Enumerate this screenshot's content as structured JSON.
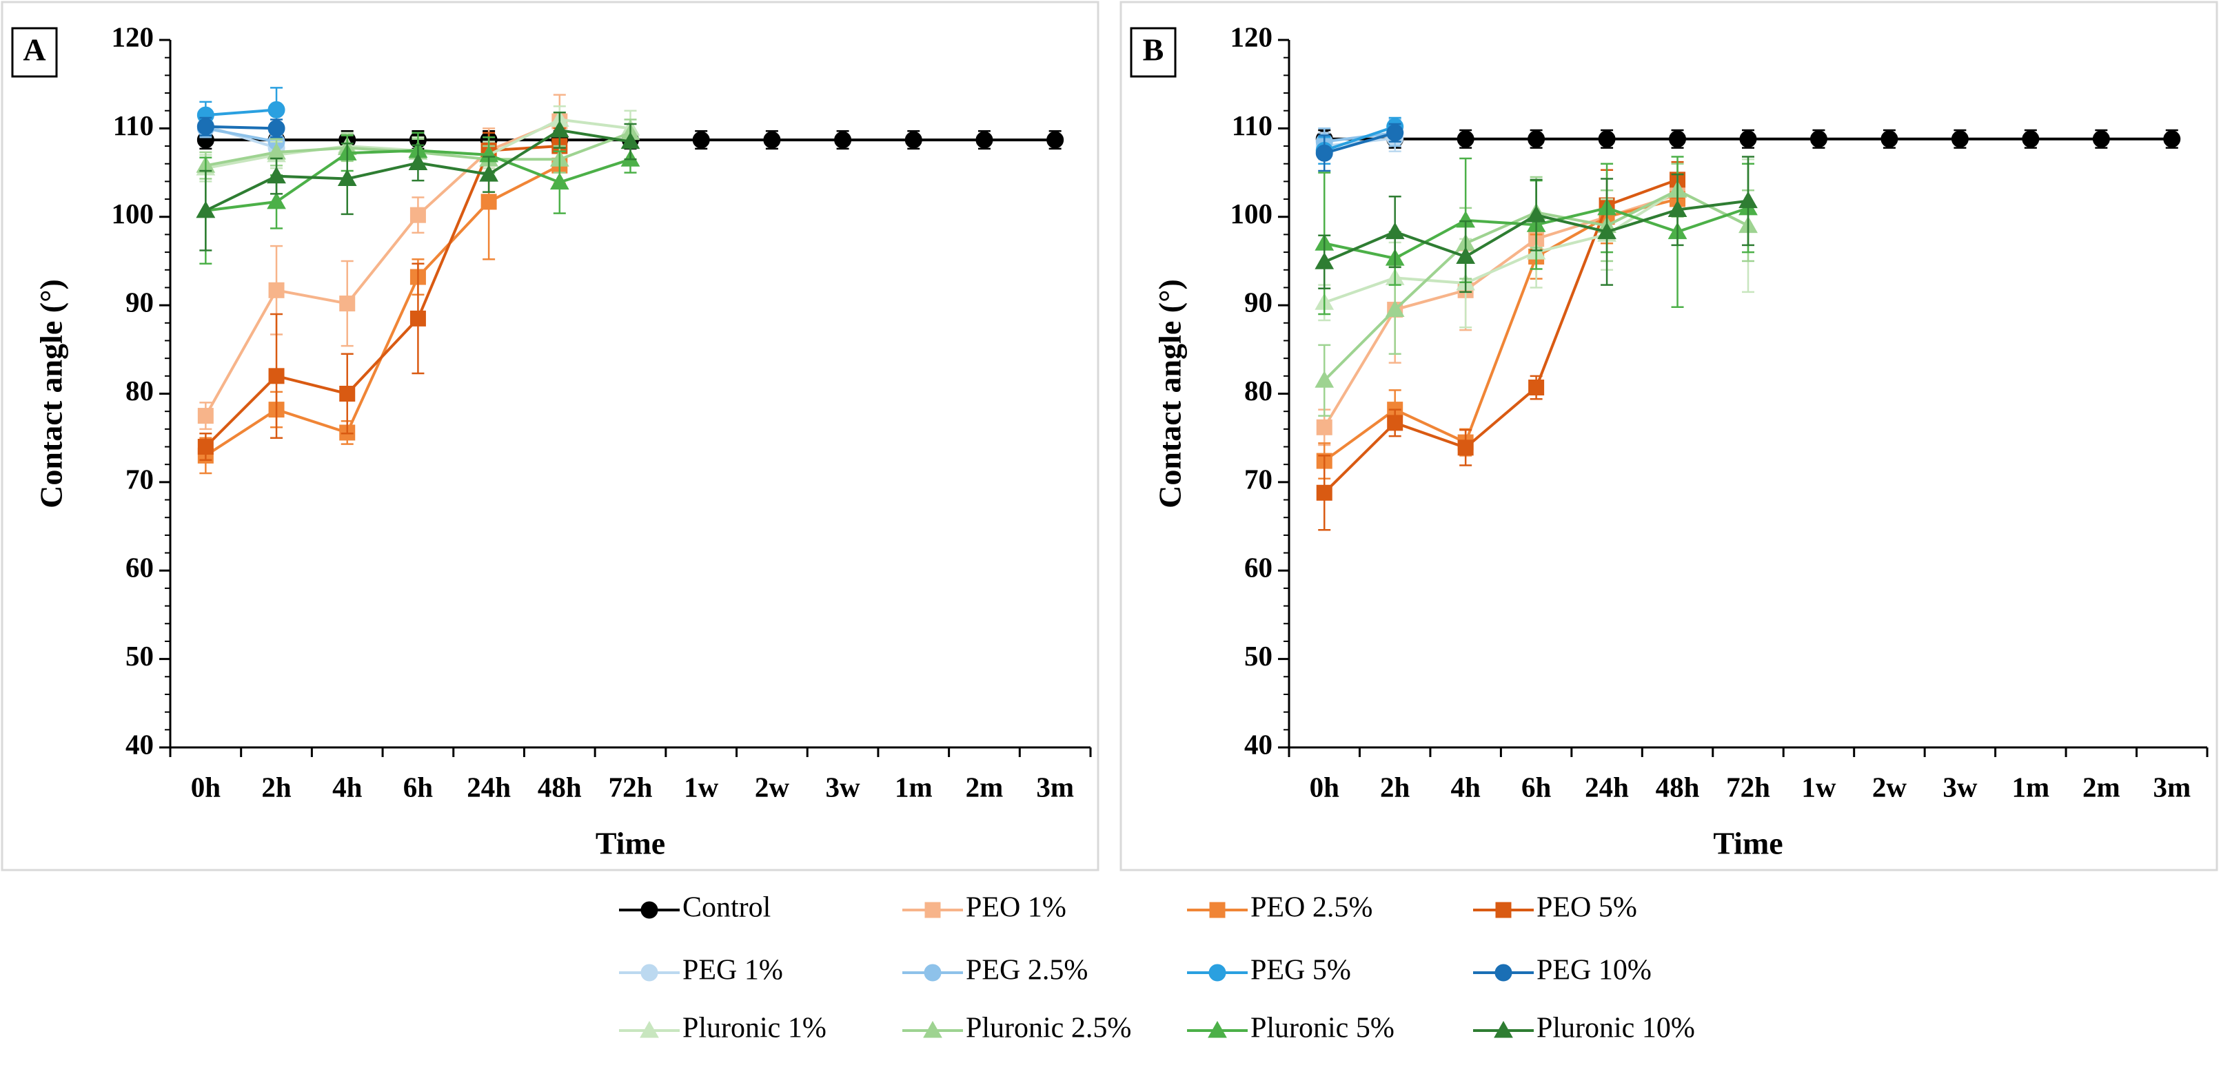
{
  "chart_data": [
    {
      "type": "line",
      "panel": "A",
      "ylabel": "Contact angle (°)",
      "xlabel": "Time",
      "categories": [
        "0h",
        "2h",
        "4h",
        "6h",
        "24h",
        "48h",
        "72h",
        "1w",
        "2w",
        "3w",
        "1m",
        "2m",
        "3m"
      ],
      "ylim": [
        40,
        120
      ],
      "yticks": [
        40,
        50,
        60,
        70,
        80,
        90,
        100,
        110,
        120
      ],
      "series": [
        {
          "values": [
            108.7,
            108.7,
            108.7,
            108.7,
            108.7,
            108.7,
            108.7,
            108.7,
            108.7,
            108.7,
            108.7,
            108.7,
            108.7
          ],
          "errors": [
            1,
            1,
            1,
            1,
            1,
            1,
            1,
            1,
            1,
            1,
            1,
            1,
            1
          ]
        },
        {
          "values": [
            77.5,
            91.7,
            90.2,
            100.2,
            107.5,
            110.8,
            null,
            null,
            null,
            null,
            null,
            null,
            null
          ],
          "errors": [
            1.5,
            5,
            4.8,
            2,
            2.5,
            3,
            null,
            null,
            null,
            null,
            null,
            null,
            null
          ]
        },
        {
          "values": [
            73,
            78.2,
            75.6,
            93.2,
            101.7,
            105.8,
            null,
            null,
            null,
            null,
            null,
            null,
            null
          ],
          "errors": [
            2,
            2,
            1.3,
            2,
            6.5,
            2,
            null,
            null,
            null,
            null,
            null,
            null,
            null
          ]
        },
        {
          "values": [
            74,
            82,
            80,
            88.5,
            107.5,
            108,
            null,
            null,
            null,
            null,
            null,
            null,
            null
          ],
          "errors": [
            1.5,
            7,
            4.5,
            6.2,
            2,
            2,
            null,
            null,
            null,
            null,
            null,
            null,
            null
          ]
        },
        {
          "values": [
            110.3,
            107.8,
            null,
            null,
            null,
            null,
            null,
            null,
            null,
            null,
            null,
            null,
            null
          ],
          "errors": [
            1,
            1.5,
            null,
            null,
            null,
            null,
            null,
            null,
            null,
            null,
            null,
            null,
            null
          ]
        },
        {
          "values": [
            110,
            108.5,
            null,
            null,
            null,
            null,
            null,
            null,
            null,
            null,
            null,
            null,
            null
          ],
          "errors": [
            1,
            1.5,
            null,
            null,
            null,
            null,
            null,
            null,
            null,
            null,
            null,
            null,
            null
          ]
        },
        {
          "values": [
            111.5,
            112.1,
            null,
            null,
            null,
            null,
            null,
            null,
            null,
            null,
            null,
            null,
            null
          ],
          "errors": [
            1.5,
            2.5,
            null,
            null,
            null,
            null,
            null,
            null,
            null,
            null,
            null,
            null,
            null
          ]
        },
        {
          "values": [
            110.2,
            110,
            null,
            null,
            null,
            null,
            null,
            null,
            null,
            null,
            null,
            null,
            null
          ],
          "errors": [
            1,
            1,
            null,
            null,
            null,
            null,
            null,
            null,
            null,
            null,
            null,
            null,
            null
          ]
        },
        {
          "values": [
            105.5,
            107,
            108,
            107.5,
            107,
            111,
            110,
            null,
            null,
            null,
            null,
            null,
            null
          ],
          "errors": [
            1.5,
            1.5,
            1.5,
            1.5,
            1.5,
            1.5,
            2,
            null,
            null,
            null,
            null,
            null,
            null
          ]
        },
        {
          "values": [
            105.8,
            107.3,
            107.8,
            107.3,
            106.5,
            106.5,
            109.5,
            null,
            null,
            null,
            null,
            null,
            null
          ],
          "errors": [
            1.5,
            1.5,
            1.5,
            1.5,
            1.5,
            1.5,
            1.5,
            null,
            null,
            null,
            null,
            null,
            null
          ]
        },
        {
          "values": [
            100.7,
            101.7,
            107.2,
            107.5,
            107,
            103.9,
            106.5,
            null,
            null,
            null,
            null,
            null,
            null
          ],
          "errors": [
            6,
            3,
            2,
            2,
            2,
            3.5,
            1.5,
            null,
            null,
            null,
            null,
            null,
            null
          ]
        },
        {
          "values": [
            100.7,
            104.6,
            104.3,
            106.1,
            104.8,
            109.8,
            108.5,
            null,
            null,
            null,
            null,
            null,
            null
          ],
          "errors": [
            4.5,
            2,
            4,
            2,
            2,
            2,
            2,
            null,
            null,
            null,
            null,
            null,
            null
          ]
        }
      ]
    },
    {
      "type": "line",
      "panel": "B",
      "ylabel": "Contact angle (°)",
      "xlabel": "Time",
      "categories": [
        "0h",
        "2h",
        "4h",
        "6h",
        "24h",
        "48h",
        "72h",
        "1w",
        "2w",
        "3w",
        "1m",
        "2m",
        "3m"
      ],
      "ylim": [
        40,
        120
      ],
      "yticks": [
        40,
        50,
        60,
        70,
        80,
        90,
        100,
        110,
        120
      ],
      "series": [
        {
          "values": [
            108.8,
            108.8,
            108.8,
            108.8,
            108.8,
            108.8,
            108.8,
            108.8,
            108.8,
            108.8,
            108.8,
            108.8,
            108.8
          ],
          "errors": [
            1,
            1,
            1,
            1,
            1,
            1,
            1,
            1,
            1,
            1,
            1,
            1,
            1
          ]
        },
        {
          "values": [
            76.2,
            89.5,
            91.7,
            97.5,
            100,
            102.5,
            null,
            null,
            null,
            null,
            null,
            null,
            null
          ],
          "errors": [
            2,
            6,
            4.5,
            2.5,
            3,
            2,
            null,
            null,
            null,
            null,
            null,
            null,
            null
          ]
        },
        {
          "values": [
            72.4,
            78.2,
            74.5,
            95.5,
            100,
            102,
            null,
            null,
            null,
            null,
            null,
            null,
            null
          ],
          "errors": [
            2,
            2.2,
            1.5,
            2.5,
            3,
            2,
            null,
            null,
            null,
            null,
            null,
            null,
            null
          ]
        },
        {
          "values": [
            68.8,
            76.7,
            73.9,
            80.7,
            101.3,
            104.2,
            null,
            null,
            null,
            null,
            null,
            null,
            null
          ],
          "errors": [
            4.2,
            1.5,
            2,
            1.3,
            4,
            2,
            null,
            null,
            null,
            null,
            null,
            null,
            null
          ]
        },
        {
          "values": [
            108,
            108.9,
            null,
            null,
            null,
            null,
            null,
            null,
            null,
            null,
            null,
            null,
            null
          ],
          "errors": [
            1.5,
            1.5,
            null,
            null,
            null,
            null,
            null,
            null,
            null,
            null,
            null,
            null,
            null
          ]
        },
        {
          "values": [
            108.5,
            109.5,
            null,
            null,
            null,
            null,
            null,
            null,
            null,
            null,
            null,
            null,
            null
          ],
          "errors": [
            1.5,
            1.5,
            null,
            null,
            null,
            null,
            null,
            null,
            null,
            null,
            null,
            null,
            null
          ]
        },
        {
          "values": [
            107.5,
            110.2,
            null,
            null,
            null,
            null,
            null,
            null,
            null,
            null,
            null,
            null,
            null
          ],
          "errors": [
            1.5,
            1,
            null,
            null,
            null,
            null,
            null,
            null,
            null,
            null,
            null,
            null,
            null
          ]
        },
        {
          "values": [
            107.2,
            109.5,
            null,
            null,
            null,
            null,
            null,
            null,
            null,
            null,
            null,
            null,
            null
          ],
          "errors": [
            2,
            1,
            null,
            null,
            null,
            null,
            null,
            null,
            null,
            null,
            null,
            null,
            null
          ]
        },
        {
          "values": [
            90.3,
            93.1,
            92.5,
            96,
            98,
            103,
            99,
            null,
            null,
            null,
            null,
            null,
            null
          ],
          "errors": [
            2,
            4,
            5,
            4,
            4,
            3,
            7.5,
            null,
            null,
            null,
            null,
            null,
            null
          ]
        },
        {
          "values": [
            81.5,
            89.5,
            97,
            100.5,
            99,
            103,
            99,
            null,
            null,
            null,
            null,
            null,
            null
          ],
          "errors": [
            4,
            5,
            4,
            4,
            4,
            3,
            4,
            null,
            null,
            null,
            null,
            null,
            null
          ]
        },
        {
          "values": [
            97,
            95.3,
            99.6,
            99.1,
            101,
            98.3,
            101,
            null,
            null,
            null,
            null,
            null,
            null
          ],
          "errors": [
            8,
            3,
            7,
            5,
            5,
            8.5,
            5,
            null,
            null,
            null,
            null,
            null,
            null
          ]
        },
        {
          "values": [
            94.9,
            98.3,
            95.5,
            100.2,
            98.3,
            100.8,
            101.8,
            null,
            null,
            null,
            null,
            null,
            null
          ],
          "errors": [
            3,
            4,
            4,
            4,
            6,
            4,
            5,
            null,
            null,
            null,
            null,
            null,
            null
          ]
        }
      ]
    }
  ],
  "legend": [
    {
      "name": "Control",
      "color": "#000000",
      "marker": "circle"
    },
    {
      "name": "PEO 1%",
      "color": "#f7b48a",
      "marker": "square"
    },
    {
      "name": "PEO 2.5%",
      "color": "#f08536",
      "marker": "square"
    },
    {
      "name": "PEO 5%",
      "color": "#d95a12",
      "marker": "square"
    },
    {
      "name": "PEG 1%",
      "color": "#bcd9f0",
      "marker": "circle"
    },
    {
      "name": "PEG 2.5%",
      "color": "#8ec2ea",
      "marker": "circle"
    },
    {
      "name": "PEG 5%",
      "color": "#2aa0e0",
      "marker": "circle"
    },
    {
      "name": "PEG 10%",
      "color": "#1a6fb5",
      "marker": "circle"
    },
    {
      "name": "Pluronic 1%",
      "color": "#c8e6bf",
      "marker": "triangle"
    },
    {
      "name": "Pluronic 2.5%",
      "color": "#9ed391",
      "marker": "triangle"
    },
    {
      "name": "Pluronic 5%",
      "color": "#4cb048",
      "marker": "triangle"
    },
    {
      "name": "Pluronic 10%",
      "color": "#2e7d32",
      "marker": "triangle"
    }
  ]
}
